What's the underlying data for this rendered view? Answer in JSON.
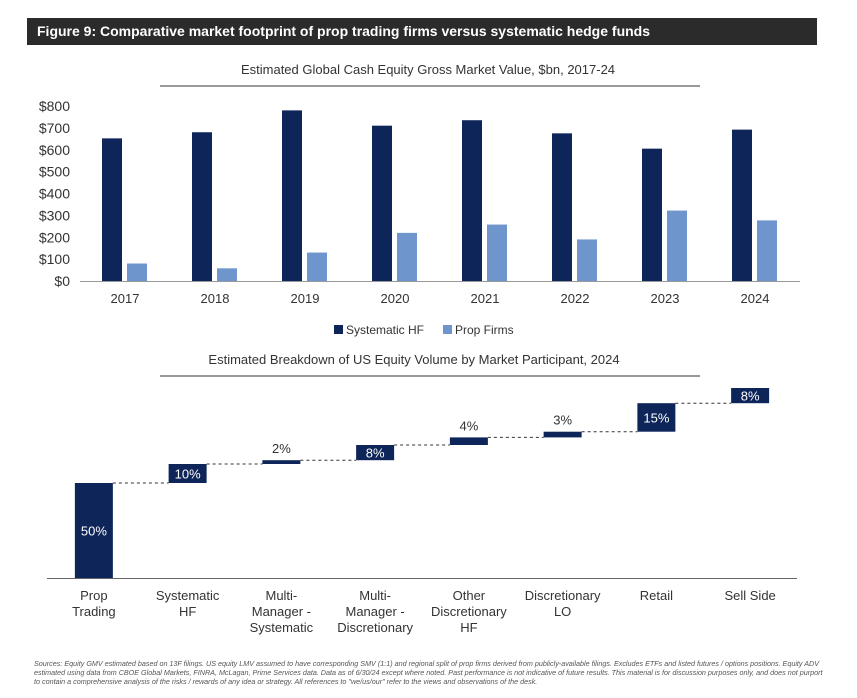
{
  "header": {
    "title": "Figure 9: Comparative market footprint of prop trading firms versus systematic hedge funds"
  },
  "chart_data": [
    {
      "type": "bar",
      "title": "Estimated Global Cash Equity Gross Market Value, $bn, 2017-24",
      "categories": [
        "2017",
        "2018",
        "2019",
        "2020",
        "2021",
        "2022",
        "2023",
        "2024"
      ],
      "series": [
        {
          "name": "Systematic HF",
          "color": "#0d2559",
          "values": [
            652,
            680,
            780,
            710,
            735,
            675,
            605,
            692
          ]
        },
        {
          "name": "Prop Firms",
          "color": "#6f95cd",
          "values": [
            80,
            58,
            130,
            220,
            258,
            190,
            322,
            277
          ]
        }
      ],
      "yticks": [
        "$0",
        "$100",
        "$200",
        "$300",
        "$400",
        "$500",
        "$600",
        "$700",
        "$800"
      ],
      "ylim": [
        0,
        800
      ],
      "xlabel": "",
      "ylabel": "",
      "legend": "bottom-center"
    },
    {
      "type": "bar",
      "subtype": "waterfall",
      "title": "Estimated Breakdown of US Equity Volume by Market Participant, 2024",
      "categories": [
        [
          "Prop",
          "Trading"
        ],
        [
          "Systematic",
          "HF"
        ],
        [
          "Multi-",
          "Manager -",
          "Systematic"
        ],
        [
          "Multi-",
          "Manager -",
          "Discretionary"
        ],
        [
          "Other",
          "Discretionary",
          "HF"
        ],
        [
          "Discretionary",
          "LO"
        ],
        [
          "Retail"
        ],
        [
          "Sell Side"
        ]
      ],
      "values": [
        50,
        10,
        2,
        8,
        4,
        3,
        15,
        8
      ],
      "value_labels": [
        "50%",
        "10%",
        "2%",
        "8%",
        "4%",
        "3%",
        "15%",
        "8%"
      ],
      "label_inside": [
        true,
        true,
        false,
        true,
        false,
        false,
        true,
        true
      ],
      "color": "#0d2559",
      "ylim": [
        0,
        100
      ]
    }
  ],
  "footer": {
    "sources": "Sources: Equity GMV estimated based on 13F filings. US equity LMV assumed to have corresponding SMV (1:1) and regional split of prop firms derived from publicly-available filings. Excludes ETFs and listed futures / options positions. Equity ADV estimated using data from CBOE Global Markets, FINRA, McLagan, Prime Services data. Data as of 6/30/24 except where noted. Past performance is not indicative of future results. This material is for discussion purposes only, and does not purport to contain a comprehensive analysis of the risks / rewards of any idea or strategy. All references to \"we/us/our\" refer to the views and observations of the desk."
  }
}
